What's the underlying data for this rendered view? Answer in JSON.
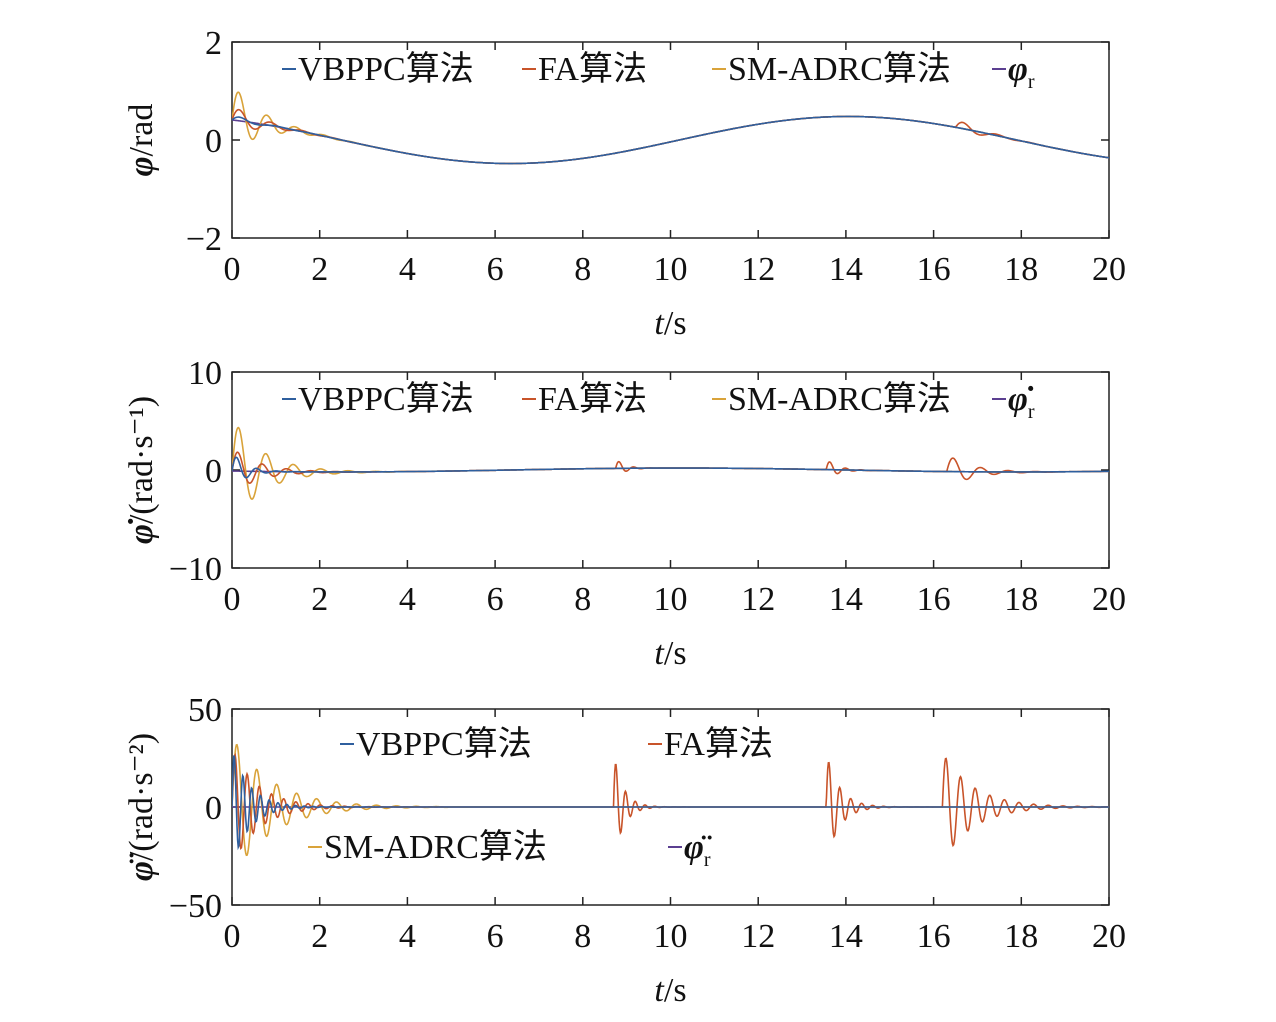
{
  "colors": {
    "VBPPC": "#2f5f9e",
    "FA": "#c8542a",
    "SMADRC": "#d9a33a",
    "ref": "#5b3f91"
  },
  "chart_data": [
    {
      "type": "line",
      "xlabel_italic": "t",
      "xlabel_unit": "/s",
      "ylabel_main": "φ",
      "ylabel_unit": "/rad",
      "xlim": [
        0,
        20
      ],
      "ylim": [
        -2,
        2
      ],
      "xticks": [
        "0",
        "2",
        "4",
        "6",
        "8",
        "10",
        "12",
        "14",
        "16",
        "18",
        "20"
      ],
      "yticks": [
        {
          "v": 2,
          "t": "2"
        },
        {
          "v": 0,
          "t": "0"
        },
        {
          "v": -2,
          "t": "−2"
        }
      ],
      "legend": {
        "rows": 1,
        "items": [
          {
            "key": "VBPPC",
            "label": "VBPPC算法"
          },
          {
            "key": "FA",
            "label": "FA算法"
          },
          {
            "key": "SMADRC",
            "label": "SM-ADRC算法"
          },
          {
            "key": "ref",
            "label": "φ",
            "sub": "r"
          }
        ]
      },
      "reference": {
        "kind": "sine",
        "amp": 0.48,
        "period": 15.4,
        "phase": 5.2
      },
      "series": [
        {
          "key": "ref",
          "transients": []
        },
        {
          "key": "SMADRC",
          "transients": [
            {
              "t0": 0,
              "amp": 0.75,
              "freq": 1.55,
              "tau": 0.6
            }
          ]
        },
        {
          "key": "FA",
          "transients": [
            {
              "t0": 0,
              "amp": 0.3,
              "freq": 1.4,
              "tau": 0.6
            },
            {
              "t0": 16.5,
              "amp": 0.18,
              "freq": 1.3,
              "tau": 0.5
            }
          ]
        },
        {
          "key": "VBPPC",
          "transients": [
            {
              "t0": 0,
              "amp": 0.12,
              "freq": 1.2,
              "tau": 0.4
            }
          ]
        }
      ]
    },
    {
      "type": "line",
      "xlabel_italic": "t",
      "xlabel_unit": "/s",
      "ylabel_main": "φ̇",
      "ylabel_unit": "/(rad·s⁻¹)",
      "xlim": [
        0,
        20
      ],
      "ylim": [
        -10,
        10
      ],
      "xticks": [
        "0",
        "2",
        "4",
        "6",
        "8",
        "10",
        "12",
        "14",
        "16",
        "18",
        "20"
      ],
      "yticks": [
        {
          "v": 10,
          "t": "10"
        },
        {
          "v": 0,
          "t": "0"
        },
        {
          "v": -10,
          "t": "−10"
        }
      ],
      "legend": {
        "rows": 1,
        "items": [
          {
            "key": "VBPPC",
            "label": "VBPPC算法"
          },
          {
            "key": "FA",
            "label": "FA算法"
          },
          {
            "key": "SMADRC",
            "label": "SM-ADRC算法"
          },
          {
            "key": "ref",
            "label": "φ̇",
            "sub": "r"
          }
        ]
      },
      "reference": {
        "kind": "cos",
        "amp": 0.2,
        "period": 15.4,
        "phase": 5.2
      },
      "series": [
        {
          "key": "ref",
          "transients": []
        },
        {
          "key": "SMADRC",
          "transients": [
            {
              "t0": 0,
              "amp": 5.5,
              "freq": 1.6,
              "tau": 0.7
            }
          ]
        },
        {
          "key": "FA",
          "transients": [
            {
              "t0": 0,
              "amp": 2.4,
              "freq": 1.8,
              "tau": 0.6
            },
            {
              "t0": 8.75,
              "amp": 1.0,
              "freq": 3.0,
              "tau": 0.2
            },
            {
              "t0": 13.55,
              "amp": 1.1,
              "freq": 2.8,
              "tau": 0.25
            },
            {
              "t0": 16.3,
              "amp": 1.8,
              "freq": 1.6,
              "tau": 0.55
            }
          ]
        },
        {
          "key": "VBPPC",
          "transients": [
            {
              "t0": 0,
              "amp": 2.0,
              "freq": 2.2,
              "tau": 0.3
            }
          ]
        }
      ]
    },
    {
      "type": "line",
      "xlabel_italic": "t",
      "xlabel_unit": "/s",
      "ylabel_main": "φ̈",
      "ylabel_unit": "/(rad·s⁻²)",
      "xlim": [
        0,
        20
      ],
      "ylim": [
        -50,
        50
      ],
      "xticks": [
        "0",
        "2",
        "4",
        "6",
        "8",
        "10",
        "12",
        "14",
        "16",
        "18",
        "20"
      ],
      "yticks": [
        {
          "v": 50,
          "t": "50"
        },
        {
          "v": 0,
          "t": "0"
        },
        {
          "v": -50,
          "t": "−50"
        }
      ],
      "legend": {
        "rows": 2,
        "items": [
          {
            "key": "VBPPC",
            "label": "VBPPC算法"
          },
          {
            "key": "FA",
            "label": "FA算法"
          },
          {
            "key": "SMADRC",
            "label": "SM-ADRC算法"
          },
          {
            "key": "ref",
            "label": "φ̈",
            "sub": "r"
          }
        ]
      },
      "reference": {
        "kind": "zero",
        "amp": 0,
        "period": 15.4,
        "phase": 5.2
      },
      "series": [
        {
          "key": "ref",
          "transients": []
        },
        {
          "key": "SMADRC",
          "transients": [
            {
              "t0": 0,
              "amp": 36,
              "freq": 2.2,
              "tau": 0.9
            }
          ]
        },
        {
          "key": "FA",
          "transients": [
            {
              "t0": 0,
              "amp": 30,
              "freq": 3.6,
              "tau": 0.6
            },
            {
              "t0": 8.7,
              "amp": 28,
              "freq": 4.5,
              "tau": 0.22
            },
            {
              "t0": 13.55,
              "amp": 28,
              "freq": 4.0,
              "tau": 0.3
            },
            {
              "t0": 16.2,
              "amp": 28,
              "freq": 3.0,
              "tau": 0.7
            }
          ]
        },
        {
          "key": "VBPPC",
          "transients": [
            {
              "t0": 0,
              "amp": 30,
              "freq": 5.0,
              "tau": 0.4
            }
          ]
        }
      ]
    }
  ]
}
